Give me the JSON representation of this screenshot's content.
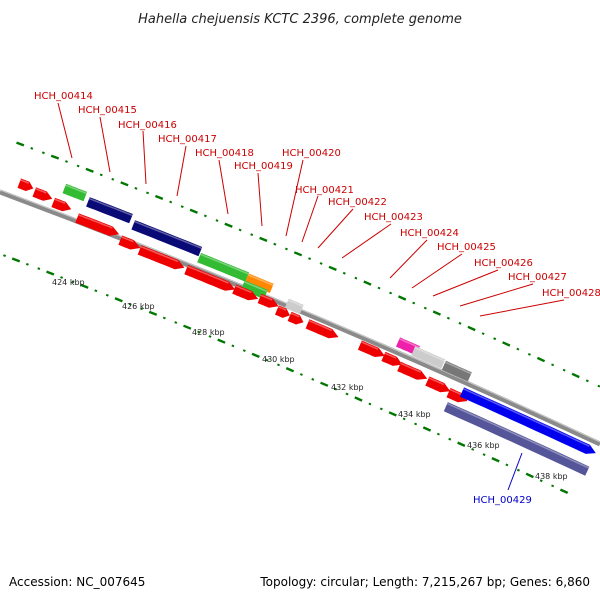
{
  "title": "Hahella chejuensis KCTC 2396, complete genome",
  "accession": "Accession: NC_007645",
  "topology": "Topology: circular; Length: 7,215,267 bp; Genes: 6,860",
  "colors": {
    "backbone": "#8a8a8a",
    "ticks": "#007700",
    "gene_red": "#ee0000",
    "label_red": "#cc0000",
    "label_blue": "#0000cc"
  },
  "scale_labels": [
    "424 kbp",
    "426 kbp",
    "428 kbp",
    "430 kbp",
    "432 kbp",
    "434 kbp",
    "436 kbp",
    "438 kbp"
  ],
  "gene_labels": [
    "HCH_00414",
    "HCH_00415",
    "HCH_00416",
    "HCH_00417",
    "HCH_00418",
    "HCH_00419",
    "HCH_00420",
    "HCH_00421",
    "HCH_00422",
    "HCH_00423",
    "HCH_00424",
    "HCH_00425",
    "HCH_00426",
    "HCH_00427",
    "HCH_00428",
    "HCH_00429"
  ]
}
